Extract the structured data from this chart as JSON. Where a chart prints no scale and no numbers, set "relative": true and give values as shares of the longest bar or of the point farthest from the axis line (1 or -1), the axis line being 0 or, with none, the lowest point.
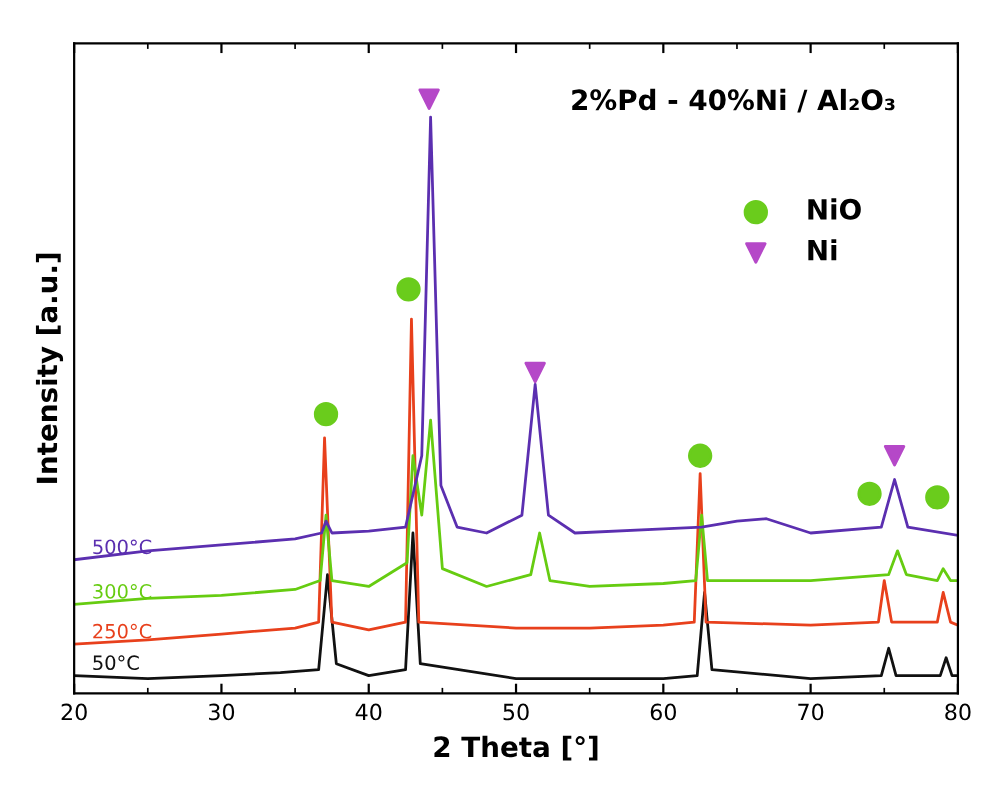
{
  "chart_data": {
    "type": "line",
    "title": "2%Pd - 40%Ni / Al₂O₃",
    "xlabel": "2 Theta [°]",
    "ylabel": "Intensity [a.u.]",
    "relative": true,
    "xlim": [
      20,
      80
    ],
    "xticks": [
      20,
      30,
      40,
      50,
      60,
      70,
      80
    ],
    "tick_labels": "x",
    "legend": "top right",
    "grid": false,
    "marker": "none",
    "line_style": "solid",
    "series": [
      {
        "name": "50°C",
        "color": "#111111",
        "x": [
          20,
          25,
          30,
          34,
          36.6,
          37.2,
          37.8,
          40,
          42.5,
          43.0,
          43.5,
          50,
          55,
          60,
          62.3,
          62.8,
          63.3,
          70,
          74.8,
          75.3,
          75.8,
          78.8,
          79.2,
          79.6,
          80
        ],
        "values": [
          0.03,
          0.025,
          0.03,
          0.035,
          0.04,
          0.2,
          0.05,
          0.03,
          0.04,
          0.27,
          0.05,
          0.025,
          0.025,
          0.025,
          0.03,
          0.17,
          0.04,
          0.025,
          0.03,
          0.076,
          0.03,
          0.03,
          0.06,
          0.03,
          0.03
        ]
      },
      {
        "name": "250°C",
        "color": "#e8401c",
        "x": [
          20,
          25,
          30,
          35,
          36.6,
          37.0,
          37.5,
          40,
          42.5,
          42.9,
          43.4,
          50,
          55,
          60,
          62.1,
          62.5,
          62.9,
          70,
          74.6,
          75.0,
          75.5,
          78.6,
          79.0,
          79.5,
          80
        ],
        "values": [
          0.083,
          0.09,
          0.1,
          0.11,
          0.12,
          0.43,
          0.12,
          0.107,
          0.12,
          0.63,
          0.12,
          0.11,
          0.11,
          0.115,
          0.12,
          0.37,
          0.12,
          0.115,
          0.12,
          0.19,
          0.12,
          0.12,
          0.17,
          0.12,
          0.115
        ]
      },
      {
        "name": "300°C",
        "color": "#66cc11",
        "x": [
          20,
          25,
          30,
          35,
          36.7,
          37.1,
          37.5,
          40,
          42.6,
          43.0,
          43.6,
          44.2,
          45.0,
          48,
          51.0,
          51.6,
          52.3,
          55,
          60,
          62.2,
          62.6,
          63.0,
          70,
          75.3,
          75.9,
          76.5,
          78.6,
          79.0,
          79.5,
          80
        ],
        "values": [
          0.15,
          0.16,
          0.165,
          0.175,
          0.19,
          0.3,
          0.19,
          0.18,
          0.22,
          0.4,
          0.3,
          0.46,
          0.21,
          0.18,
          0.2,
          0.27,
          0.19,
          0.18,
          0.185,
          0.19,
          0.3,
          0.19,
          0.19,
          0.2,
          0.24,
          0.2,
          0.19,
          0.21,
          0.19,
          0.19
        ]
      },
      {
        "name": "500°C",
        "color": "#5b2fb0",
        "x": [
          20,
          25,
          30,
          35,
          36.8,
          37.1,
          37.5,
          40,
          42.5,
          43.6,
          44.2,
          44.9,
          46,
          48,
          50.4,
          51.3,
          52.2,
          54,
          60,
          62.6,
          65,
          67,
          70,
          74.8,
          75.7,
          76.6,
          80
        ],
        "values": [
          0.225,
          0.24,
          0.25,
          0.26,
          0.27,
          0.29,
          0.27,
          0.273,
          0.28,
          0.4,
          0.97,
          0.35,
          0.28,
          0.27,
          0.3,
          0.52,
          0.3,
          0.27,
          0.277,
          0.28,
          0.29,
          0.294,
          0.27,
          0.28,
          0.36,
          0.28,
          0.266
        ]
      },
      {
        "name": "NiO",
        "type": "scatter",
        "marker": "circle",
        "color": "#6acc1c",
        "x": [
          37.1,
          42.7,
          62.5,
          74.0,
          78.6
        ],
        "values": [
          0.47,
          0.68,
          0.4,
          0.336,
          0.33
        ]
      },
      {
        "name": "Ni",
        "type": "scatter",
        "marker": "triangle",
        "color": "#b548c8",
        "x": [
          44.1,
          51.3,
          75.7
        ],
        "values": [
          1.0,
          0.54,
          0.4
        ]
      }
    ]
  }
}
